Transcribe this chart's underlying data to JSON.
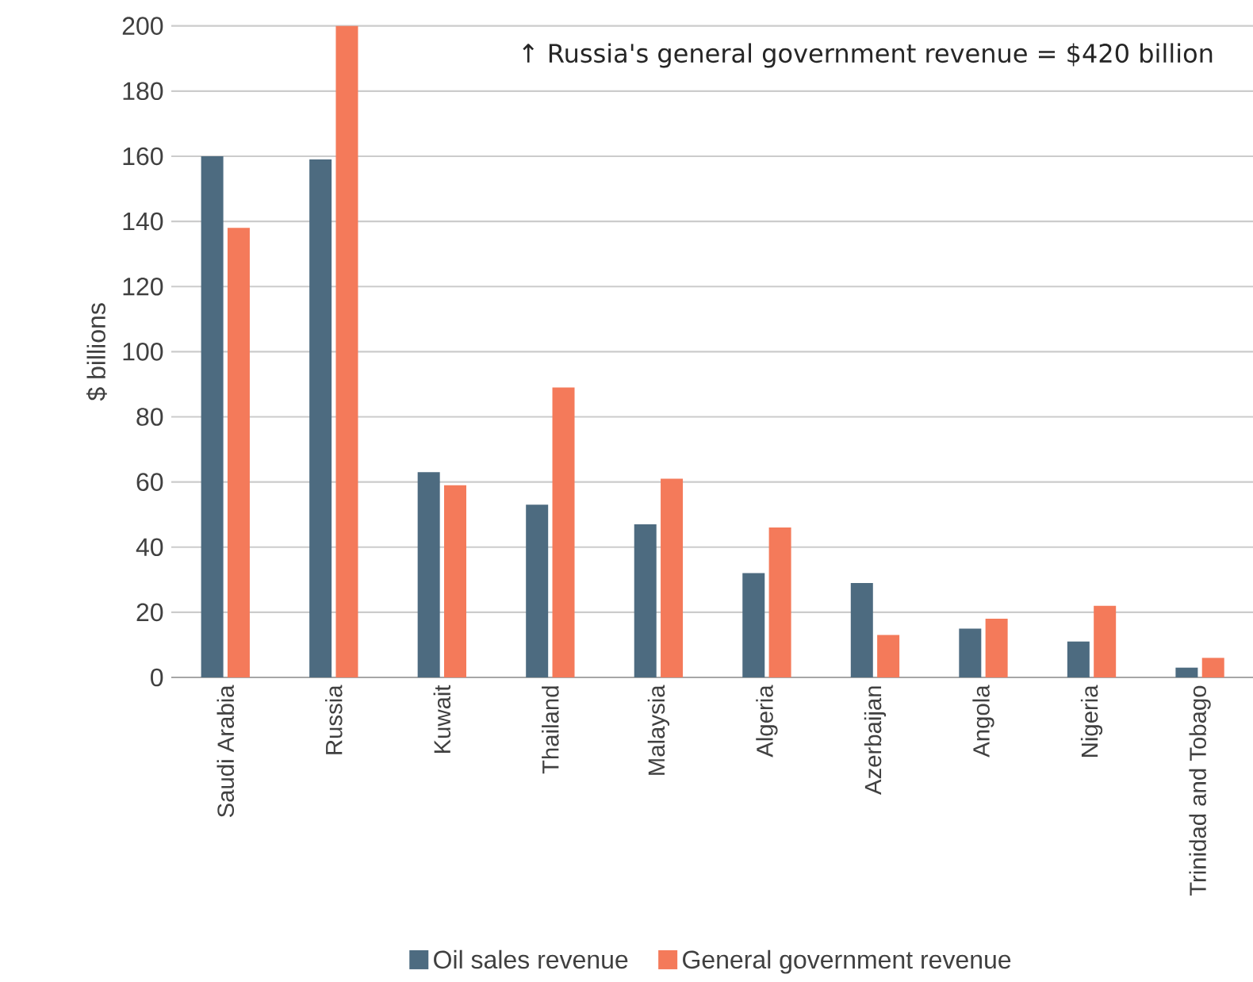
{
  "chart_data": {
    "type": "bar",
    "ylabel": "$ billions",
    "categories": [
      "Saudi Arabia",
      "Russia",
      "Kuwait",
      "Thailand",
      "Malaysia",
      "Algeria",
      "Azerbaijan",
      "Angola",
      "Nigeria",
      "Trinidad and Tobago"
    ],
    "series": [
      {
        "name": "Oil sales revenue",
        "color": "#4d6b80",
        "values": [
          160,
          159,
          63,
          53,
          47,
          32,
          29,
          15,
          11,
          3
        ]
      },
      {
        "name": "General government revenue",
        "color": "#f47a5a",
        "values": [
          138,
          200,
          59,
          89,
          61,
          46,
          13,
          18,
          22,
          6
        ]
      }
    ],
    "annotations": [
      "↑ Russia's general government revenue = $420 billion"
    ],
    "ylim": [
      0,
      200
    ],
    "yticks": [
      0,
      20,
      40,
      60,
      80,
      100,
      120,
      140,
      160,
      180,
      200
    ],
    "grid": "y",
    "legend": "bottom"
  }
}
